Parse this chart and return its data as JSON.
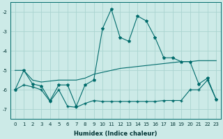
{
  "xlabel": "Humidex (Indice chaleur)",
  "bg_color": "#cceae7",
  "grid_color": "#aad4d0",
  "line_color": "#006b6b",
  "xlim": [
    -0.5,
    23.5
  ],
  "ylim": [
    -7.5,
    -1.5
  ],
  "yticks": [
    -7,
    -6,
    -5,
    -4,
    -3,
    -2
  ],
  "xticks": [
    0,
    1,
    2,
    3,
    4,
    5,
    6,
    7,
    8,
    9,
    10,
    11,
    12,
    13,
    14,
    15,
    16,
    17,
    18,
    19,
    20,
    21,
    22,
    23
  ],
  "series_jagged": {
    "x": [
      0,
      1,
      2,
      3,
      4,
      5,
      6,
      7,
      8,
      9,
      10,
      11,
      12,
      13,
      14,
      15,
      16,
      17,
      18,
      19,
      20,
      21,
      22,
      23
    ],
    "y": [
      -6.0,
      -5.0,
      -5.7,
      -5.8,
      -6.55,
      -5.75,
      -5.75,
      -6.85,
      -5.75,
      -5.5,
      -2.85,
      -1.85,
      -3.3,
      -3.5,
      -2.2,
      -2.45,
      -3.3,
      -4.35,
      -4.35,
      -4.55,
      -4.55,
      -5.7,
      -5.4,
      -6.5
    ]
  },
  "series_mid": {
    "x": [
      0,
      1,
      2,
      3,
      4,
      5,
      6,
      7,
      8,
      9,
      10,
      11,
      12,
      13,
      14,
      15,
      16,
      17,
      18,
      19,
      20,
      21,
      22,
      23
    ],
    "y": [
      -5.0,
      -5.0,
      -5.5,
      -5.6,
      -5.55,
      -5.5,
      -5.5,
      -5.5,
      -5.4,
      -5.2,
      -5.1,
      -5.0,
      -4.9,
      -4.85,
      -4.8,
      -4.75,
      -4.7,
      -4.65,
      -4.6,
      -4.55,
      -4.55,
      -4.5,
      -4.5,
      -4.5
    ]
  },
  "series_low": {
    "x": [
      0,
      1,
      2,
      3,
      4,
      5,
      6,
      7,
      8,
      9,
      10,
      11,
      12,
      13,
      14,
      15,
      16,
      17,
      18,
      19,
      20,
      21,
      22,
      23
    ],
    "y": [
      -6.0,
      -5.75,
      -5.85,
      -6.0,
      -6.6,
      -6.0,
      -6.85,
      -6.9,
      -6.7,
      -6.55,
      -6.6,
      -6.6,
      -6.6,
      -6.6,
      -6.6,
      -6.6,
      -6.6,
      -6.55,
      -6.55,
      -6.55,
      -6.0,
      -6.0,
      -5.5,
      -6.5
    ]
  }
}
